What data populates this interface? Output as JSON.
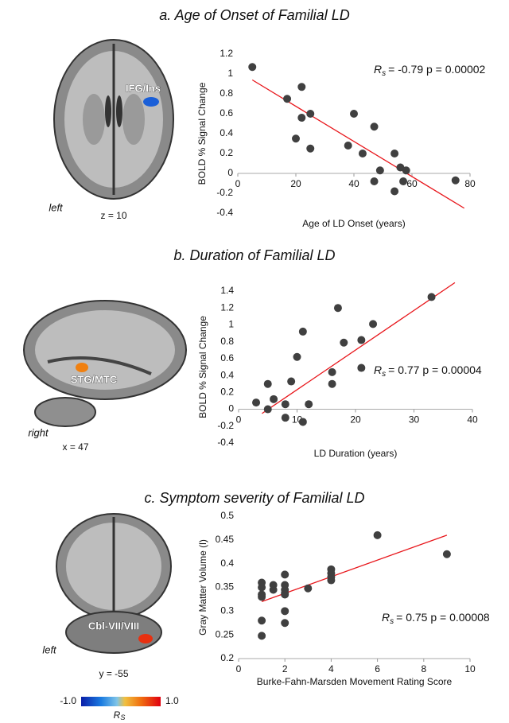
{
  "chart_data": [
    {
      "type": "scatter",
      "title": "a. Age of Onset of Familial LD",
      "x_label": "Age of LD Onset (years)",
      "y_label": "BOLD % Signal Change",
      "x": [
        5,
        17,
        20,
        22,
        22,
        25,
        25,
        38,
        40,
        43,
        47,
        47,
        49,
        54,
        54,
        56,
        58,
        57,
        75
      ],
      "values": [
        1.07,
        0.75,
        0.35,
        0.87,
        0.56,
        0.6,
        0.25,
        0.28,
        0.6,
        0.2,
        0.47,
        -0.08,
        0.03,
        0.2,
        -0.18,
        0.06,
        0.03,
        -0.08,
        -0.07
      ],
      "color": "#404040",
      "fit": {
        "x": [
          5,
          78
        ],
        "y": [
          0.94,
          -0.35
        ],
        "color": "#e8161b"
      },
      "xlim": [
        0,
        80
      ],
      "ylim": [
        -0.4,
        1.2
      ],
      "xticks": [
        0,
        20,
        40,
        60,
        80
      ],
      "yticks": [
        -0.4,
        -0.2,
        0,
        0.2,
        0.4,
        0.6,
        0.8,
        1,
        1.2
      ],
      "annotation": {
        "stat": "R",
        "stat_sub": "s",
        "text": "= -0.79 p = 0.00002"
      },
      "image": {
        "region": "IFG/Ins",
        "side": "left",
        "slice": "z = 10"
      }
    },
    {
      "type": "scatter",
      "title": "b. Duration of Familial LD",
      "x_label": "LD Duration (years)",
      "y_label": "BOLD % Signal Change",
      "x": [
        3,
        5,
        5,
        6,
        8,
        8,
        9,
        10,
        11,
        11,
        12,
        16,
        16,
        17,
        18,
        21,
        21,
        23,
        33
      ],
      "values": [
        0.08,
        0.3,
        0.0,
        0.12,
        0.06,
        -0.1,
        0.33,
        0.62,
        0.92,
        -0.15,
        0.06,
        0.44,
        0.3,
        1.2,
        0.79,
        0.82,
        0.49,
        1.01,
        1.33
      ],
      "color": "#404040",
      "fit": {
        "x": [
          4,
          37
        ],
        "y": [
          -0.05,
          1.5
        ],
        "color": "#e8161b"
      },
      "xlim": [
        0,
        40
      ],
      "ylim": [
        -0.4,
        1.4
      ],
      "xticks": [
        0,
        10,
        20,
        30,
        40
      ],
      "yticks": [
        -0.4,
        -0.2,
        0,
        0.2,
        0.4,
        0.6,
        0.8,
        1,
        1.2,
        1.4
      ],
      "annotation": {
        "stat": "R",
        "stat_sub": "s",
        "text": "= 0.77 p = 0.00004"
      },
      "image": {
        "region": "STG/MTC",
        "side": "right",
        "slice": "x = 47"
      }
    },
    {
      "type": "scatter",
      "title": "c. Symptom severity of Familial LD",
      "x_label": "Burke-Fahn-Marsden Movement Rating Score",
      "y_label": "Gray Matter Volume (l)",
      "x": [
        1,
        1,
        1,
        1,
        1,
        1,
        1.5,
        1.5,
        2,
        2,
        2,
        2,
        2,
        2,
        2,
        3,
        4,
        4,
        4,
        4,
        6,
        9
      ],
      "values": [
        0.36,
        0.35,
        0.335,
        0.33,
        0.28,
        0.248,
        0.355,
        0.345,
        0.377,
        0.355,
        0.345,
        0.338,
        0.335,
        0.3,
        0.275,
        0.348,
        0.388,
        0.38,
        0.372,
        0.365,
        0.46,
        0.42
      ],
      "color": "#404040",
      "fit": {
        "x": [
          1,
          9
        ],
        "y": [
          0.32,
          0.46
        ],
        "color": "#e8161b"
      },
      "xlim": [
        0,
        10
      ],
      "ylim": [
        0.2,
        0.5
      ],
      "xticks": [
        0,
        2,
        4,
        6,
        8,
        10
      ],
      "yticks": [
        0.2,
        0.25,
        0.3,
        0.35,
        0.4,
        0.45,
        0.5
      ],
      "annotation": {
        "stat": "R",
        "stat_sub": "s",
        "text": "= 0.75 p = 0.00008"
      },
      "image": {
        "region": "Cbl-VII/VIII",
        "side": "left",
        "slice": "y = -55"
      }
    }
  ],
  "colorbar": {
    "ticks": [
      {
        "value": -1,
        "label": "-1.0"
      },
      {
        "value": 1,
        "label": "1.0"
      }
    ],
    "label": "R",
    "label_sub": "S"
  }
}
